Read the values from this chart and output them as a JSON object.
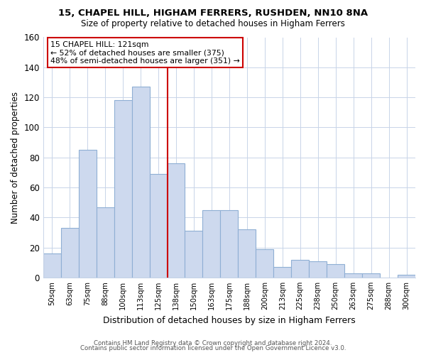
{
  "title": "15, CHAPEL HILL, HIGHAM FERRERS, RUSHDEN, NN10 8NA",
  "subtitle": "Size of property relative to detached houses in Higham Ferrers",
  "xlabel": "Distribution of detached houses by size in Higham Ferrers",
  "ylabel": "Number of detached properties",
  "bin_labels": [
    "50sqm",
    "63sqm",
    "75sqm",
    "88sqm",
    "100sqm",
    "113sqm",
    "125sqm",
    "138sqm",
    "150sqm",
    "163sqm",
    "175sqm",
    "188sqm",
    "200sqm",
    "213sqm",
    "225sqm",
    "238sqm",
    "250sqm",
    "263sqm",
    "275sqm",
    "288sqm",
    "300sqm"
  ],
  "bar_heights": [
    16,
    33,
    85,
    47,
    118,
    127,
    69,
    76,
    31,
    45,
    45,
    32,
    19,
    7,
    12,
    11,
    9,
    3,
    3,
    0,
    2
  ],
  "bar_color": "#cdd9ee",
  "bar_edge_color": "#8fafd4",
  "vline_color": "#cc0000",
  "annotation_title": "15 CHAPEL HILL: 121sqm",
  "annotation_line1": "← 52% of detached houses are smaller (375)",
  "annotation_line2": "48% of semi-detached houses are larger (351) →",
  "annotation_box_color": "#ffffff",
  "annotation_box_edge": "#cc0000",
  "ylim": [
    0,
    160
  ],
  "yticks": [
    0,
    20,
    40,
    60,
    80,
    100,
    120,
    140,
    160
  ],
  "footer1": "Contains HM Land Registry data © Crown copyright and database right 2024.",
  "footer2": "Contains public sector information licensed under the Open Government Licence v3.0.",
  "background_color": "#ffffff",
  "grid_color": "#c8d4e8"
}
